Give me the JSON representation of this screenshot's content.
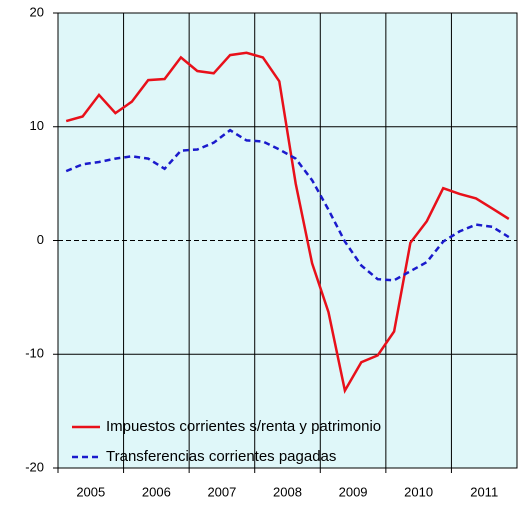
{
  "chart_data": {
    "type": "line",
    "x": [
      2005.125,
      2005.375,
      2005.625,
      2005.875,
      2006.125,
      2006.375,
      2006.625,
      2006.875,
      2007.125,
      2007.375,
      2007.625,
      2007.875,
      2008.125,
      2008.375,
      2008.625,
      2008.875,
      2009.125,
      2009.375,
      2009.625,
      2009.875,
      2010.125,
      2010.375,
      2010.625,
      2010.875,
      2011.125,
      2011.375,
      2011.625,
      2011.875
    ],
    "series": [
      {
        "name": "Impuestos corrientes s/renta y patrimonio",
        "color": "#e8101a",
        "dash": false,
        "values": [
          10.5,
          10.9,
          12.8,
          11.2,
          12.2,
          14.1,
          14.2,
          16.1,
          14.9,
          14.7,
          16.3,
          16.5,
          16.1,
          14.0,
          5.0,
          -2.0,
          -6.3,
          -13.2,
          -10.7,
          -10.1,
          -8.0,
          -0.2,
          1.7,
          4.6,
          4.1,
          3.7,
          2.8,
          1.9
        ]
      },
      {
        "name": "Transferencias corrientes pagadas",
        "color": "#1a1acc",
        "dash": true,
        "values": [
          6.1,
          6.7,
          6.9,
          7.2,
          7.4,
          7.2,
          6.3,
          7.9,
          8.0,
          8.6,
          9.7,
          8.8,
          8.7,
          8.0,
          7.2,
          5.3,
          2.7,
          -0.1,
          -2.2,
          -3.4,
          -3.5,
          -2.7,
          -1.9,
          -0.1,
          0.8,
          1.4,
          1.2,
          0.3
        ]
      }
    ],
    "xlim": [
      2005,
      2012
    ],
    "xticks": [
      2005,
      2006,
      2007,
      2008,
      2009,
      2010,
      2011
    ],
    "ylim": [
      -20,
      20
    ],
    "yticks": [
      -20,
      -10,
      0,
      10,
      20
    ],
    "grid": true,
    "legend": "bottom-left",
    "background": "#dff7f9"
  }
}
